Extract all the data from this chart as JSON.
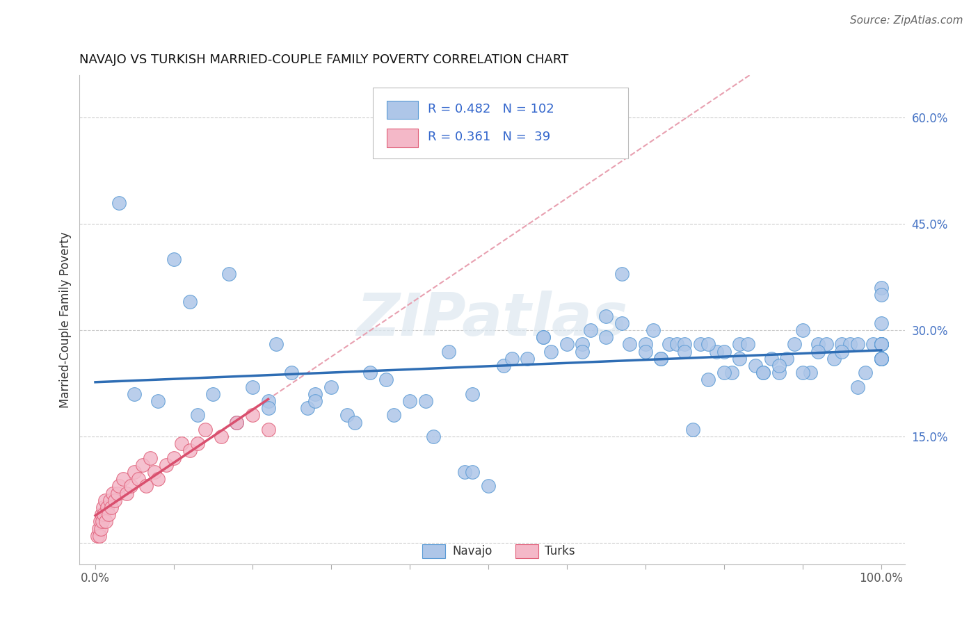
{
  "title": "NAVAJO VS TURKISH MARRIED-COUPLE FAMILY POVERTY CORRELATION CHART",
  "source_text": "Source: ZipAtlas.com",
  "xlabel": "",
  "ylabel": "Married-Couple Family Poverty",
  "x_tick_positions": [
    0,
    10,
    20,
    30,
    40,
    50,
    60,
    70,
    80,
    90,
    100
  ],
  "x_tick_labels": [
    "0.0%",
    "",
    "",
    "",
    "",
    "",
    "",
    "",
    "",
    "",
    "100.0%"
  ],
  "y_tick_positions": [
    0,
    15,
    30,
    45,
    60
  ],
  "y_tick_labels": [
    "",
    "15.0%",
    "30.0%",
    "45.0%",
    "60.0%"
  ],
  "xlim": [
    -2,
    103
  ],
  "ylim": [
    -3,
    66
  ],
  "navajo_R": 0.482,
  "navajo_N": 102,
  "turks_R": 0.361,
  "turks_N": 39,
  "navajo_color": "#aec6e8",
  "navajo_edge_color": "#5b9bd5",
  "turks_color": "#f4b8c8",
  "turks_edge_color": "#e0607a",
  "navajo_line_color": "#2e6db4",
  "turks_line_color": "#d94f6e",
  "ref_line_color": "#e8a0b0",
  "watermark": "ZIPatlas",
  "legend_label_navajo": "Navajo",
  "legend_label_turks": "Turks",
  "navajo_x": [
    3,
    10,
    12,
    17,
    20,
    22,
    23,
    25,
    27,
    28,
    30,
    32,
    35,
    37,
    38,
    40,
    42,
    45,
    47,
    48,
    50,
    52,
    55,
    57,
    58,
    60,
    62,
    63,
    65,
    67,
    68,
    70,
    71,
    72,
    73,
    74,
    75,
    76,
    77,
    78,
    79,
    80,
    81,
    82,
    83,
    84,
    85,
    86,
    87,
    88,
    89,
    90,
    91,
    92,
    93,
    94,
    95,
    96,
    97,
    98,
    99,
    100,
    100,
    100,
    100,
    5,
    8,
    13,
    15,
    18,
    22,
    28,
    33,
    43,
    48,
    53,
    57,
    62,
    65,
    67,
    70,
    72,
    75,
    78,
    80,
    82,
    85,
    87,
    90,
    92,
    95,
    97,
    100,
    100,
    100,
    100,
    100,
    100,
    100,
    100,
    100,
    100
  ],
  "navajo_y": [
    48,
    40,
    34,
    38,
    22,
    20,
    28,
    24,
    19,
    21,
    22,
    18,
    24,
    23,
    18,
    20,
    20,
    27,
    10,
    10,
    8,
    25,
    26,
    29,
    27,
    28,
    28,
    30,
    32,
    38,
    28,
    28,
    30,
    26,
    28,
    28,
    28,
    16,
    28,
    23,
    27,
    27,
    24,
    28,
    28,
    25,
    24,
    26,
    24,
    26,
    28,
    30,
    24,
    28,
    28,
    26,
    28,
    28,
    22,
    24,
    28,
    28,
    26,
    28,
    26,
    21,
    20,
    18,
    21,
    17,
    19,
    20,
    17,
    15,
    21,
    26,
    29,
    27,
    29,
    31,
    27,
    26,
    27,
    28,
    24,
    26,
    24,
    25,
    24,
    27,
    27,
    28,
    36,
    28,
    26,
    26,
    28,
    26,
    35,
    28,
    26,
    31
  ],
  "turks_x": [
    0.3,
    0.4,
    0.5,
    0.6,
    0.7,
    0.8,
    0.9,
    1.0,
    1.1,
    1.2,
    1.3,
    1.5,
    1.7,
    1.9,
    2.0,
    2.2,
    2.5,
    2.8,
    3.0,
    3.5,
    4.0,
    4.5,
    5.0,
    5.5,
    6.0,
    6.5,
    7.0,
    7.5,
    8.0,
    9.0,
    10.0,
    11.0,
    12.0,
    13.0,
    14.0,
    16.0,
    18.0,
    20.0,
    22.0
  ],
  "turks_y": [
    1,
    2,
    1,
    3,
    2,
    4,
    3,
    5,
    4,
    6,
    3,
    5,
    4,
    6,
    5,
    7,
    6,
    7,
    8,
    9,
    7,
    8,
    10,
    9,
    11,
    8,
    12,
    10,
    9,
    11,
    12,
    14,
    13,
    14,
    16,
    15,
    17,
    18,
    16
  ]
}
